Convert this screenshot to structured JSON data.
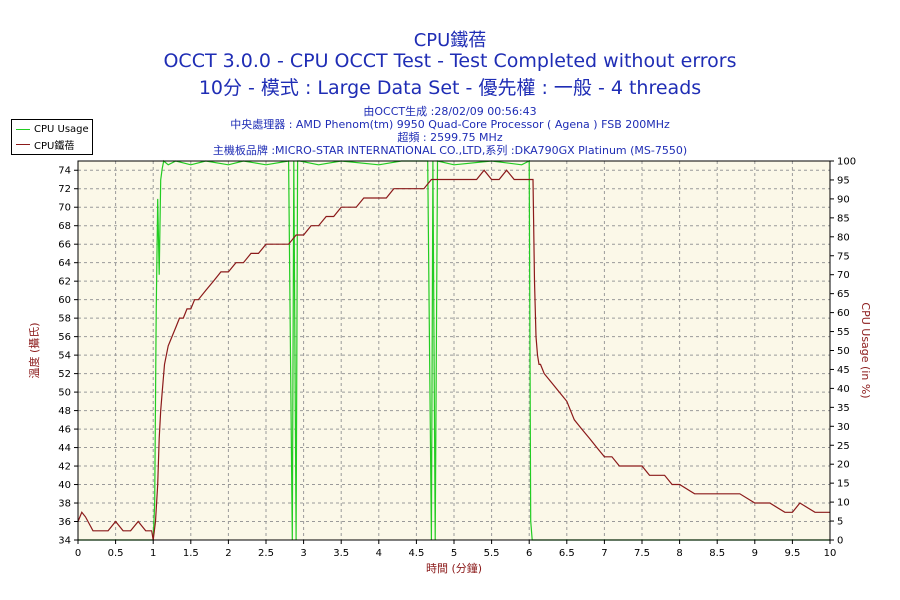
{
  "header": {
    "line1": "CPU鐵蓓",
    "line2": "OCCT 3.0.0 - CPU OCCT Test - Test Completed without errors",
    "line3": "10分 - 模式 : Large Data Set - 優先權 : 一般 - 4 threads",
    "info1": "由OCCT生成 :28/02/09 00:56:43",
    "info2": "中央處理器 : AMD Phenom(tm) 9950 Quad-Core Processor ( Agena ) FSB 200MHz",
    "info3": "超頻 : 2599.75 MHz",
    "info4": "主機板品牌 :MICRO-STAR INTERNATIONAL CO.,LTD,系列 :DKA790GX Platinum (MS-7550)"
  },
  "chart_data": {
    "type": "line",
    "xlabel": "時間 (分鐘)",
    "ylabel_left": "溫度 (攝氏)",
    "ylabel_right": "CPU Usage (in %)",
    "xlim": [
      0,
      10
    ],
    "ylim_left": [
      34,
      75
    ],
    "ylim_right": [
      0,
      100
    ],
    "x_ticks": [
      "0",
      "0.5",
      "1",
      "1.5",
      "2",
      "2.5",
      "3",
      "3.5",
      "4",
      "4.5",
      "5",
      "5.5",
      "6",
      "6.5",
      "7",
      "7.5",
      "8",
      "8.5",
      "9",
      "9.5",
      "10"
    ],
    "y_left_ticks": [
      "34",
      "36",
      "38",
      "40",
      "42",
      "44",
      "46",
      "48",
      "50",
      "52",
      "54",
      "56",
      "58",
      "60",
      "62",
      "64",
      "66",
      "68",
      "70",
      "72",
      "74"
    ],
    "y_right_ticks": [
      "0",
      "5",
      "10",
      "15",
      "20",
      "25",
      "30",
      "35",
      "40",
      "45",
      "50",
      "55",
      "60",
      "65",
      "70",
      "75",
      "80",
      "85",
      "90",
      "95",
      "100"
    ],
    "grid": true,
    "legend_position": "top-left",
    "background_color": "#fbf8e8",
    "series": [
      {
        "name": "CPU Usage",
        "axis": "right",
        "color": "#22cc22",
        "x": [
          0,
          1.0,
          1.02,
          1.04,
          1.06,
          1.08,
          1.1,
          1.12,
          1.14,
          1.2,
          1.3,
          1.5,
          1.7,
          2.0,
          2.2,
          2.5,
          2.8,
          2.85,
          2.87,
          2.9,
          2.92,
          2.95,
          3.2,
          3.5,
          4.0,
          4.3,
          4.65,
          4.7,
          4.72,
          4.75,
          4.78,
          5.0,
          5.5,
          5.9,
          6.0,
          6.02,
          6.04,
          6.06,
          10
        ],
        "y": [
          0,
          0,
          10,
          60,
          90,
          70,
          95,
          98,
          100,
          99,
          100,
          99,
          100,
          99,
          100,
          99,
          100,
          0,
          100,
          0,
          100,
          100,
          99,
          100,
          99,
          100,
          100,
          0,
          100,
          0,
          100,
          99,
          100,
          99,
          100,
          5,
          0,
          0,
          0
        ]
      },
      {
        "name": "CPU鐵蓓",
        "axis": "left",
        "color": "#8b1a1a",
        "x": [
          0,
          0.05,
          0.1,
          0.2,
          0.4,
          0.5,
          0.6,
          0.7,
          0.8,
          0.9,
          0.98,
          1.0,
          1.03,
          1.06,
          1.08,
          1.1,
          1.12,
          1.15,
          1.2,
          1.25,
          1.3,
          1.35,
          1.4,
          1.45,
          1.5,
          1.55,
          1.6,
          1.7,
          1.8,
          1.9,
          2.0,
          2.1,
          2.2,
          2.3,
          2.4,
          2.5,
          2.6,
          2.7,
          2.8,
          2.9,
          3.0,
          3.1,
          3.2,
          3.3,
          3.4,
          3.5,
          3.6,
          3.7,
          3.8,
          3.9,
          4.0,
          4.1,
          4.2,
          4.3,
          4.4,
          4.5,
          4.6,
          4.7,
          4.8,
          4.9,
          5.0,
          5.1,
          5.2,
          5.3,
          5.4,
          5.5,
          5.6,
          5.7,
          5.8,
          5.9,
          6.0,
          6.05,
          6.07,
          6.09,
          6.11,
          6.13,
          6.15,
          6.2,
          6.3,
          6.4,
          6.5,
          6.6,
          6.7,
          6.8,
          6.9,
          7.0,
          7.1,
          7.2,
          7.3,
          7.4,
          7.5,
          7.6,
          7.7,
          7.8,
          7.9,
          8.0,
          8.2,
          8.4,
          8.6,
          8.8,
          9.0,
          9.2,
          9.4,
          9.5,
          9.6,
          9.8,
          10.0
        ],
        "y": [
          36,
          37,
          36.5,
          35,
          35,
          36,
          35,
          35,
          36,
          35,
          35,
          34,
          36,
          40,
          45,
          48,
          50,
          53,
          55,
          56,
          57,
          58,
          58,
          59,
          59,
          60,
          60,
          61,
          62,
          63,
          63,
          64,
          64,
          65,
          65,
          66,
          66,
          66,
          66,
          67,
          67,
          68,
          68,
          69,
          69,
          70,
          70,
          70,
          71,
          71,
          71,
          71,
          72,
          72,
          72,
          72,
          72,
          73,
          73,
          73,
          73,
          73,
          73,
          73,
          74,
          73,
          73,
          74,
          73,
          73,
          73,
          73,
          62,
          56,
          54,
          53,
          53,
          52,
          51,
          50,
          49,
          47,
          46,
          45,
          44,
          43,
          43,
          42,
          42,
          42,
          42,
          41,
          41,
          41,
          40,
          40,
          39,
          39,
          39,
          39,
          38,
          38,
          37,
          37,
          38,
          37,
          37
        ]
      }
    ]
  }
}
